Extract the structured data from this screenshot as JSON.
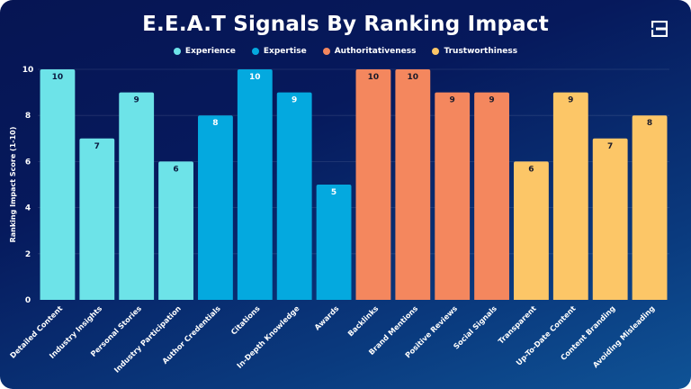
{
  "chart_data": {
    "type": "bar",
    "title": "E.E.A.T Signals By Ranking Impact",
    "xlabel": "",
    "ylabel": "Ranking Impact Score (1-10)",
    "ylim": [
      0,
      10
    ],
    "yticks": [
      "0",
      "2",
      "4",
      "6",
      "8",
      "10"
    ],
    "grid": true,
    "legend_position": "top-center",
    "legend": [
      {
        "name": "Experience",
        "color": "#6de3e8"
      },
      {
        "name": "Expertise",
        "color": "#04a9df"
      },
      {
        "name": "Authoritativeness",
        "color": "#f4875e"
      },
      {
        "name": "Trustworthiness",
        "color": "#fcc667"
      }
    ],
    "categories": [
      "Detailed Content",
      "Industry Insights",
      "Personal Stories",
      "Industry Participation",
      "Author Credentials",
      "Citations",
      "In-Depth Knowledge",
      "Awards",
      "Backlinks",
      "Brand Mentions",
      "Positive Reviews",
      "Social Signals",
      "Transparent",
      "Up-To-Date Content",
      "Content Branding",
      "Avoiding Misleading"
    ],
    "values": [
      10,
      7,
      9,
      6,
      8,
      10,
      9,
      5,
      10,
      10,
      9,
      9,
      6,
      9,
      7,
      8
    ],
    "groups": [
      "Experience",
      "Experience",
      "Experience",
      "Experience",
      "Expertise",
      "Expertise",
      "Expertise",
      "Expertise",
      "Authoritativeness",
      "Authoritativeness",
      "Authoritativeness",
      "Authoritativeness",
      "Trustworthiness",
      "Trustworthiness",
      "Trustworthiness",
      "Trustworthiness"
    ],
    "series": [
      {
        "name": "Experience",
        "categories": [
          "Detailed Content",
          "Industry Insights",
          "Personal Stories",
          "Industry Participation"
        ],
        "values": [
          10,
          7,
          9,
          6
        ]
      },
      {
        "name": "Expertise",
        "categories": [
          "Author Credentials",
          "Citations",
          "In-Depth Knowledge",
          "Awards"
        ],
        "values": [
          8,
          10,
          9,
          5
        ]
      },
      {
        "name": "Authoritativeness",
        "categories": [
          "Backlinks",
          "Brand Mentions",
          "Positive Reviews",
          "Social Signals"
        ],
        "values": [
          10,
          10,
          9,
          9
        ]
      },
      {
        "name": "Trustworthiness",
        "categories": [
          "Transparent",
          "Up-To-Date Content",
          "Content Branding",
          "Avoiding Misleading"
        ],
        "values": [
          6,
          9,
          7,
          8
        ]
      }
    ],
    "label_colors": {
      "Experience": "#0b1a40",
      "Expertise": "#ffffff",
      "Authoritativeness": "#1a1a2a",
      "Trustworthiness": "#1a1a2a"
    }
  },
  "logo": {
    "icon": "brand-logo-icon"
  }
}
